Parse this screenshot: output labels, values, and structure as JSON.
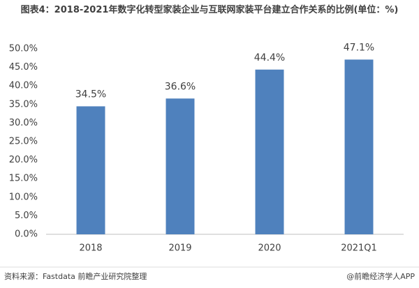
{
  "chart_data": {
    "type": "bar",
    "title": "图表4：2018-2021年数字化转型家装企业与互联网家装平台建立合作关系的比例(单位：%)",
    "categories": [
      "2018",
      "2019",
      "2020",
      "2021Q1"
    ],
    "values": [
      34.5,
      36.6,
      44.4,
      47.1
    ],
    "value_labels": [
      "34.5%",
      "36.6%",
      "44.4%",
      "47.1%"
    ],
    "color": "#4f81bd",
    "ylim": [
      0,
      50
    ],
    "yticks": [
      {
        "value": 0,
        "label": "0.0%"
      },
      {
        "value": 5,
        "label": "5.0%"
      },
      {
        "value": 10,
        "label": "10.0%"
      },
      {
        "value": 15,
        "label": "15.0%"
      },
      {
        "value": 20,
        "label": "20.0%"
      },
      {
        "value": 25,
        "label": "25.0%"
      },
      {
        "value": 30,
        "label": "30.0%"
      },
      {
        "value": 35,
        "label": "35.0%"
      },
      {
        "value": 40,
        "label": "40.0%"
      },
      {
        "value": 45,
        "label": "45.0%"
      },
      {
        "value": 50,
        "label": "50.0%"
      }
    ],
    "grid": false
  },
  "footer": {
    "source": "资料来源：Fastdata 前瞻产业研究院整理",
    "brand": "@前瞻经济学人APP"
  }
}
